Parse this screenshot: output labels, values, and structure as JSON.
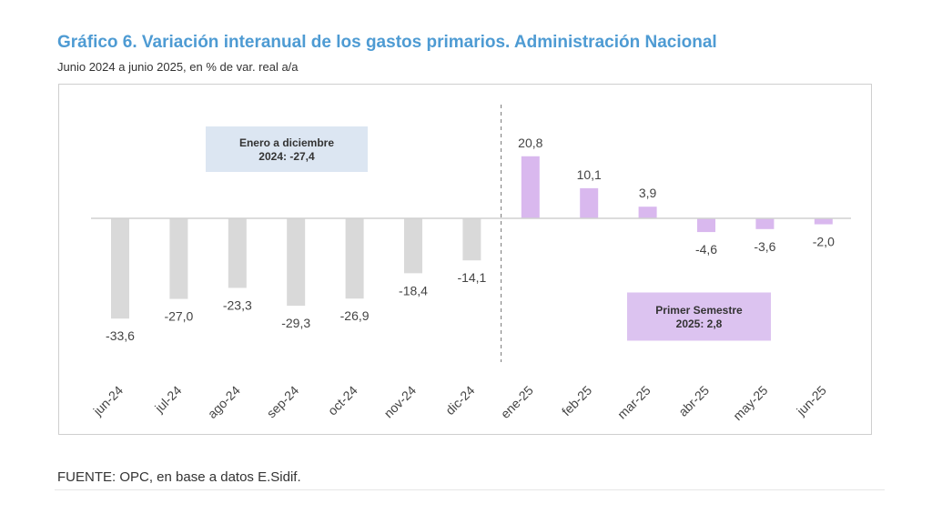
{
  "header": {
    "title": "Gráfico 6. Variación interanual de los gastos primarios. Administración Nacional",
    "subtitle": "Junio 2024 a junio 2025, en % de var. real a/a"
  },
  "footer": {
    "source": "FUENTE: OPC, en base a datos E.Sidif."
  },
  "colors": {
    "title": "#4e9bd3",
    "bar_2024": "#d9d9d9",
    "bar_2025": "#d9b8ee",
    "box_2024": "#dce6f2",
    "box_2025": "#dcc3f0"
  },
  "chart_data": {
    "type": "bar",
    "categories": [
      "jun-24",
      "jul-24",
      "ago-24",
      "sep-24",
      "oct-24",
      "nov-24",
      "dic-24",
      "ene-25",
      "feb-25",
      "mar-25",
      "abr-25",
      "may-25",
      "jun-25"
    ],
    "values": [
      -33.6,
      -27.0,
      -23.3,
      -29.3,
      -26.9,
      -18.4,
      -14.1,
      20.8,
      10.1,
      3.9,
      -4.6,
      -3.6,
      -2.0
    ],
    "value_labels": [
      "-33,6",
      "-27,0",
      "-23,3",
      "-29,3",
      "-26,9",
      "-18,4",
      "-14,1",
      "20,8",
      "10,1",
      "3,9",
      "-4,6",
      "-3,6",
      "-2,0"
    ],
    "ylim": [
      -45,
      32
    ],
    "grid": false,
    "xlabel": "",
    "ylabel": "",
    "divider_after_category": "dic-24",
    "annotations": [
      {
        "line1": "Enero a diciembre",
        "line2": "2024: -27,4"
      },
      {
        "line1": "Primer Semestre",
        "line2": "2025: 2,8"
      }
    ]
  }
}
